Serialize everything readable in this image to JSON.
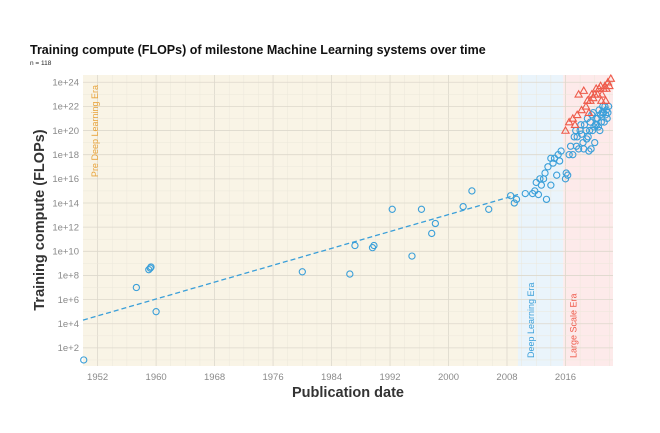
{
  "chart_data": {
    "type": "scatter",
    "title": "Training compute (FLOPs) of milestone Machine Learning systems over time",
    "subtitle": "n = 118",
    "xlabel": "Publication date",
    "ylabel": "Training compute (FLOPs)",
    "yscale": "log",
    "xlim": [
      1950,
      2022.5
    ],
    "ylim_log10": [
      0.5,
      24.6
    ],
    "x_ticks": [
      "1952",
      "1960",
      "1968",
      "1976",
      "1984",
      "1992",
      "2000",
      "2008",
      "2016"
    ],
    "y_ticks": [
      "1e+2",
      "1e+4",
      "1e+6",
      "1e+8",
      "1e+10",
      "1e+12",
      "1e+14",
      "1e+16",
      "1e+18",
      "1e+20",
      "1e+22",
      "1e+24"
    ],
    "grid": true,
    "eras": [
      {
        "name": "Pre Deep Learning Era",
        "start": 1950,
        "end": 2009.5,
        "color": "#f9f4e6",
        "label_color": "#e8a33a"
      },
      {
        "name": "Deep Learning Era",
        "start": 2009.5,
        "end": 2015.7,
        "color": "#eaf4fb",
        "label_color": "#3a9fd9"
      },
      {
        "name": "Large Scale Era",
        "start": 2015.7,
        "end": 2022.5,
        "color": "#fdeaea",
        "label_color": "#ee5a4a"
      }
    ],
    "trend_line": {
      "x": [
        1950,
        2009.5
      ],
      "log10_y": [
        4.3,
        14.7
      ],
      "color": "#3a9fd9",
      "dashed": true
    },
    "series": [
      {
        "marker": "circle",
        "color": "#3a9fd9",
        "points": [
          [
            1950.1,
            10.0
          ],
          [
            1957.3,
            10000000.0
          ],
          [
            1959.0,
            300000000.0
          ],
          [
            1959.2,
            400000000.0
          ],
          [
            1959.3,
            500000000.0
          ],
          [
            1960.0,
            100000.0
          ],
          [
            1980.0,
            200000000.0
          ],
          [
            1986.5,
            130000000.0
          ],
          [
            1987.2,
            30000000000.0
          ],
          [
            1989.6,
            20000000000.0
          ],
          [
            1989.8,
            30000000000.0
          ],
          [
            1992.3,
            30000000000000.0
          ],
          [
            1995.0,
            4000000000.0
          ],
          [
            1996.3,
            30000000000000.0
          ],
          [
            1997.7,
            300000000000.0
          ],
          [
            1998.2,
            2000000000000.0
          ],
          [
            2002.0,
            50000000000000.0
          ],
          [
            2003.2,
            1000000000000000.0
          ],
          [
            2005.5,
            30000000000000.0
          ],
          [
            2008.5,
            400000000000000.0
          ],
          [
            2009.0,
            100000000000000.0
          ],
          [
            2009.3,
            200000000000000.0
          ],
          [
            2010.5,
            600000000000000.0
          ],
          [
            2011.5,
            600000000000000.0
          ],
          [
            2011.8,
            1000000000000000.0
          ],
          [
            2012.0,
            5000000000000000.0
          ],
          [
            2012.3,
            500000000000000.0
          ],
          [
            2012.5,
            1e+16
          ],
          [
            2012.7,
            3000000000000000.0
          ],
          [
            2013.0,
            1e+16
          ],
          [
            2013.2,
            3e+16
          ],
          [
            2013.4,
            200000000000000.0
          ],
          [
            2013.6,
            1e+17
          ],
          [
            2014.0,
            3000000000000000.0
          ],
          [
            2014.0,
            5e+17
          ],
          [
            2014.3,
            2e+17
          ],
          [
            2014.5,
            5e+17
          ],
          [
            2014.8,
            2e+16
          ],
          [
            2015.0,
            1e+18
          ],
          [
            2015.2,
            3e+17
          ],
          [
            2015.4,
            2e+18
          ],
          [
            2016.0,
            1e+16
          ],
          [
            2016.1,
            3e+16
          ],
          [
            2016.3,
            2e+16
          ],
          [
            2016.5,
            1e+18
          ],
          [
            2016.7,
            5e+18
          ],
          [
            2017.0,
            1e+18
          ],
          [
            2017.2,
            3e+19
          ],
          [
            2017.4,
            1e+20
          ],
          [
            2017.5,
            5e+18
          ],
          [
            2017.6,
            3e+19
          ],
          [
            2017.8,
            3e+18
          ],
          [
            2018.0,
            1e+20
          ],
          [
            2018.1,
            3e+20
          ],
          [
            2018.2,
            5e+19
          ],
          [
            2018.4,
            1e+19
          ],
          [
            2018.5,
            3e+18
          ],
          [
            2018.6,
            3e+20
          ],
          [
            2018.8,
            1e+20
          ],
          [
            2018.9,
            2e+19
          ],
          [
            2019.0,
            1e+21
          ],
          [
            2019.1,
            3e+19
          ],
          [
            2019.2,
            2e+18
          ],
          [
            2019.3,
            1e+20
          ],
          [
            2019.4,
            5e+20
          ],
          [
            2019.5,
            3e+18
          ],
          [
            2019.6,
            2e+21
          ],
          [
            2019.7,
            1e+20
          ],
          [
            2019.8,
            3e+21
          ],
          [
            2019.9,
            2e+20
          ],
          [
            2020.0,
            1e+19
          ],
          [
            2020.1,
            3e+20
          ],
          [
            2020.2,
            1e+21
          ],
          [
            2020.3,
            3e+20
          ],
          [
            2020.4,
            1e+21
          ],
          [
            2020.5,
            2e+20
          ],
          [
            2020.6,
            5e+21
          ],
          [
            2020.7,
            1e+20
          ],
          [
            2020.8,
            2e+21
          ],
          [
            2020.9,
            5e+20
          ],
          [
            2021.0,
            3e+21
          ],
          [
            2021.1,
            1e+22
          ],
          [
            2021.2,
            3e+21
          ],
          [
            2021.3,
            5e+20
          ],
          [
            2021.4,
            1e+22
          ],
          [
            2021.5,
            2e+21
          ],
          [
            2021.6,
            5e+21
          ],
          [
            2021.7,
            1e+21
          ],
          [
            2021.8,
            3e+21
          ],
          [
            2021.9,
            1e+22
          ]
        ]
      },
      {
        "marker": "triangle",
        "color": "#ee5a4a",
        "points": [
          [
            2016.0,
            1e+20
          ],
          [
            2016.5,
            5e+20
          ],
          [
            2017.0,
            1e+21
          ],
          [
            2017.3,
            3e+20
          ],
          [
            2017.6,
            2e+21
          ],
          [
            2017.8,
            1e+23
          ],
          [
            2018.2,
            5e+21
          ],
          [
            2018.5,
            2e+23
          ],
          [
            2018.8,
            1e+22
          ],
          [
            2019.0,
            3e+22
          ],
          [
            2019.2,
            3e+21
          ],
          [
            2019.4,
            3e+22
          ],
          [
            2019.6,
            1e+23
          ],
          [
            2019.8,
            5e+22
          ],
          [
            2020.0,
            1e+23
          ],
          [
            2020.2,
            3e+23
          ],
          [
            2020.4,
            1e+23
          ],
          [
            2020.6,
            3e+23
          ],
          [
            2020.8,
            5e+23
          ],
          [
            2021.0,
            1e+23
          ],
          [
            2021.2,
            3e+23
          ],
          [
            2021.4,
            5e+23
          ],
          [
            2021.6,
            3e+23
          ],
          [
            2021.8,
            1e+24
          ],
          [
            2022.0,
            5e+23
          ],
          [
            2022.2,
            2e+24
          ],
          [
            2020.9,
            3e+22
          ],
          [
            2021.5,
            3e+22
          ]
        ]
      }
    ]
  }
}
